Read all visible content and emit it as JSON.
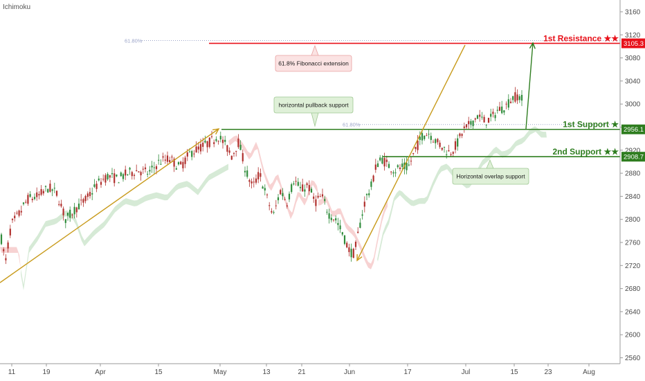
{
  "indicator_label": "Ichimoku",
  "colors": {
    "resistance": "#e8111a",
    "support": "#2e7d1f",
    "trend_arrow": "#c89a1a",
    "up_arrow": "#2e7d1f",
    "candle_up": "#2e8b3a",
    "candle_down": "#b0302d",
    "cloud_bull": "#cfe6cf",
    "cloud_bear": "#f6caca",
    "fib": "#9aa3c8",
    "callout_red_bg": "#fbe3e3",
    "callout_red_border": "#e9a0a0",
    "callout_green_bg": "#dff0d8",
    "callout_green_border": "#9fc892"
  },
  "annotations": {
    "fib_ext_label": "61.8% Fibonacci extension",
    "pullback_label": "horizontal pullback support",
    "overlap_label": "Horizontal overlap support",
    "fib_top": "61.80%",
    "fib_mid": "61.80%"
  },
  "chart_data": {
    "type": "candlestick",
    "yaxis": {
      "ticks": [
        2560,
        2600,
        2640,
        2680,
        2720,
        2760,
        2800,
        2840,
        2880,
        2920,
        2960,
        3000,
        3040,
        3080,
        3120,
        3160
      ],
      "ylim": [
        2545,
        3180
      ],
      "position": "right"
    },
    "xaxis": {
      "tick_labels": [
        "11",
        "19",
        "Apr",
        "15",
        "May",
        "13",
        "21",
        "Jun",
        "17",
        "Jul",
        "15",
        "23",
        "Aug"
      ]
    },
    "levels": [
      {
        "name": "1st Resistance ★★",
        "value": 3105.3,
        "tag": "3105.3",
        "color_key": "resistance"
      },
      {
        "name": "1st Support ★",
        "value": 2956.1,
        "tag": "2956.1",
        "color_key": "support"
      },
      {
        "name": "2nd Support ★★",
        "value": 2908.7,
        "tag": "2908.7",
        "color_key": "support"
      }
    ],
    "price_path": [
      [
        0,
        2780
      ],
      [
        8,
        2725
      ],
      [
        16,
        2790
      ],
      [
        28,
        2810
      ],
      [
        40,
        2835
      ],
      [
        55,
        2840
      ],
      [
        70,
        2855
      ],
      [
        82,
        2845
      ],
      [
        95,
        2800
      ],
      [
        110,
        2820
      ],
      [
        125,
        2835
      ],
      [
        140,
        2860
      ],
      [
        155,
        2875
      ],
      [
        170,
        2870
      ],
      [
        185,
        2880
      ],
      [
        200,
        2885
      ],
      [
        215,
        2880
      ],
      [
        230,
        2900
      ],
      [
        245,
        2905
      ],
      [
        260,
        2890
      ],
      [
        275,
        2915
      ],
      [
        290,
        2925
      ],
      [
        305,
        2935
      ],
      [
        315,
        2945
      ],
      [
        325,
        2930
      ],
      [
        335,
        2910
      ],
      [
        345,
        2935
      ],
      [
        355,
        2885
      ],
      [
        365,
        2855
      ],
      [
        375,
        2880
      ],
      [
        385,
        2840
      ],
      [
        395,
        2805
      ],
      [
        405,
        2850
      ],
      [
        415,
        2830
      ],
      [
        425,
        2870
      ],
      [
        435,
        2850
      ],
      [
        445,
        2860
      ],
      [
        455,
        2830
      ],
      [
        465,
        2840
      ],
      [
        475,
        2810
      ],
      [
        485,
        2800
      ],
      [
        495,
        2775
      ],
      [
        505,
        2745
      ],
      [
        512,
        2740
      ],
      [
        520,
        2790
      ],
      [
        528,
        2835
      ],
      [
        536,
        2855
      ],
      [
        544,
        2895
      ],
      [
        552,
        2905
      ],
      [
        560,
        2895
      ],
      [
        570,
        2885
      ],
      [
        580,
        2890
      ],
      [
        590,
        2890
      ],
      [
        600,
        2920
      ],
      [
        610,
        2945
      ],
      [
        620,
        2950
      ],
      [
        630,
        2935
      ],
      [
        640,
        2925
      ],
      [
        650,
        2915
      ],
      [
        660,
        2930
      ],
      [
        670,
        2955
      ],
      [
        680,
        2965
      ],
      [
        690,
        2980
      ],
      [
        700,
        2970
      ],
      [
        710,
        2975
      ],
      [
        720,
        2990
      ],
      [
        730,
        2995
      ],
      [
        740,
        3010
      ],
      [
        748,
        3015
      ],
      [
        756,
        3005
      ]
    ]
  }
}
